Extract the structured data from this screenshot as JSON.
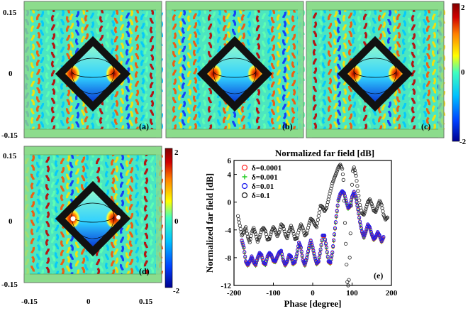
{
  "colors": {
    "green_band": "#8cdc8c",
    "frame": "#111111",
    "cmap": [
      "#00008f",
      "#0040ff",
      "#00c0ff",
      "#40ffbf",
      "#ffff00",
      "#ff8000",
      "#d00000",
      "#800000"
    ]
  },
  "field_panels": [
    {
      "label": "(a)",
      "hole": false
    },
    {
      "label": "(b)",
      "hole": false
    },
    {
      "label": "(c)",
      "hole": false
    },
    {
      "label": "(d)",
      "hole": true
    }
  ],
  "field_axes": {
    "y_ticks_top": [
      "0.15",
      "0",
      "-0.15"
    ],
    "y_ticks_bottom": [
      "0.15",
      "0",
      "-0.15"
    ],
    "x_ticks": [
      "-0.15",
      "0",
      "0.15"
    ]
  },
  "colorbars": [
    {
      "max": "2",
      "mid": "0",
      "min": "-2"
    },
    {
      "max": "2",
      "mid": "0",
      "min": "-2"
    }
  ],
  "chart_data": {
    "type": "scatter",
    "title": "Normalized far field [dB]",
    "xlabel": "Phase [degree]",
    "ylabel": "Normalized far field [dB]",
    "panel_label": "(e)",
    "xlim": [
      -200,
      200
    ],
    "ylim": [
      -12,
      6
    ],
    "x_ticks": [
      -200,
      -100,
      0,
      100,
      200
    ],
    "y_ticks": [
      6,
      4,
      0,
      -4,
      -8,
      -12
    ],
    "legend": [
      {
        "name": "δ=0.0001",
        "marker": "circle",
        "color": "#ff3030"
      },
      {
        "name": "δ=0.001",
        "marker": "plus",
        "color": "#22cc22"
      },
      {
        "name": "δ=0.01",
        "marker": "circle",
        "color": "#1a1aee"
      },
      {
        "name": "δ=0.1",
        "marker": "circle",
        "color": "#222222"
      }
    ],
    "series": [
      {
        "name": "δ=0.01 (with δ=0.0001, δ=0.001 overlapping)",
        "x": [
          -180,
          -175,
          -170,
          -165,
          -160,
          -155,
          -150,
          -145,
          -140,
          -135,
          -130,
          -125,
          -120,
          -115,
          -110,
          -105,
          -100,
          -95,
          -90,
          -85,
          -80,
          -75,
          -70,
          -65,
          -60,
          -55,
          -50,
          -45,
          -40,
          -35,
          -30,
          -25,
          -20,
          -15,
          -10,
          -5,
          0,
          5,
          10,
          15,
          20,
          25,
          30,
          35,
          40,
          45,
          50,
          55,
          60,
          65,
          70,
          75,
          80,
          85,
          90,
          95,
          100,
          105,
          110,
          115,
          120,
          125,
          130,
          135,
          140,
          145,
          150,
          155,
          160,
          165,
          170,
          175,
          180
        ],
        "values": [
          -5.5,
          -6.5,
          -8.5,
          -9.0,
          -8.5,
          -7.8,
          -8.6,
          -9.0,
          -8.0,
          -7.3,
          -7.6,
          -8.7,
          -8.9,
          -7.8,
          -7.3,
          -7.6,
          -8.4,
          -8.5,
          -7.8,
          -7.2,
          -7.0,
          -8.3,
          -9.0,
          -8.5,
          -7.6,
          -7.8,
          -8.8,
          -8.6,
          -7.4,
          -5.8,
          -6.5,
          -8.3,
          -9.0,
          -8.0,
          -6.6,
          -5.5,
          -6.5,
          -7.8,
          -8.8,
          -8.5,
          -6.8,
          -4.8,
          -4.8,
          -6.5,
          -8.5,
          -8.7,
          -7.2,
          -4.6,
          -2.0,
          0.3,
          1.2,
          1.6,
          1.3,
          0.2,
          -0.8,
          -0.5,
          0.8,
          1.5,
          0.6,
          -1.0,
          -2.8,
          -4.2,
          -5.0,
          -4.2,
          -3.2,
          -3.6,
          -4.6,
          -5.3,
          -5.0,
          -4.3,
          -4.8,
          -5.6,
          -5.0
        ]
      },
      {
        "name": "δ=0.1",
        "x": [
          -190,
          -185,
          -180,
          -175,
          -170,
          -165,
          -160,
          -155,
          -150,
          -145,
          -140,
          -135,
          -130,
          -125,
          -120,
          -115,
          -110,
          -105,
          -100,
          -95,
          -90,
          -85,
          -80,
          -75,
          -70,
          -65,
          -60,
          -55,
          -50,
          -45,
          -40,
          -35,
          -30,
          -25,
          -20,
          -15,
          -10,
          -5,
          0,
          5,
          10,
          15,
          20,
          25,
          30,
          35,
          40,
          45,
          50,
          55,
          60,
          65,
          70,
          75,
          78,
          80,
          82,
          84,
          86,
          88,
          90,
          92,
          94,
          96,
          98,
          100,
          102,
          105,
          110,
          115,
          120,
          125,
          130,
          135,
          140,
          145,
          150,
          155,
          160,
          165,
          170,
          175,
          180,
          185,
          190
        ],
        "values": [
          -2,
          -3.4,
          -4.8,
          -4.3,
          -3.6,
          -5.0,
          -5.8,
          -4.4,
          -3.7,
          -4.6,
          -5.7,
          -5.0,
          -4.0,
          -3.7,
          -4.2,
          -5.4,
          -5.3,
          -4.3,
          -3.6,
          -4.1,
          -4.9,
          -4.3,
          -3.2,
          -3.5,
          -4.6,
          -5.2,
          -4.2,
          -3.4,
          -4.2,
          -5.3,
          -5.2,
          -4.0,
          -3.2,
          -3.8,
          -4.8,
          -4.5,
          -3.3,
          -2.4,
          -2.6,
          -3.2,
          -3.6,
          -2.0,
          -0.5,
          -0.7,
          -1.3,
          -0.8,
          0.4,
          1.6,
          2.7,
          3.5,
          4.2,
          5.0,
          5.4,
          4.8,
          3.2,
          0.2,
          -3.0,
          -6.0,
          -9.0,
          -11.5,
          -12,
          -11.2,
          -8.0,
          -4.5,
          -0.5,
          2.5,
          4.5,
          5.0,
          3.8,
          1.6,
          -0.4,
          -1.6,
          -1.8,
          -1.0,
          0.0,
          0.4,
          -0.3,
          -1.2,
          -1.4,
          -0.6,
          0.2,
          -0.4,
          -1.8,
          -2.5,
          -2.2
        ]
      }
    ]
  }
}
